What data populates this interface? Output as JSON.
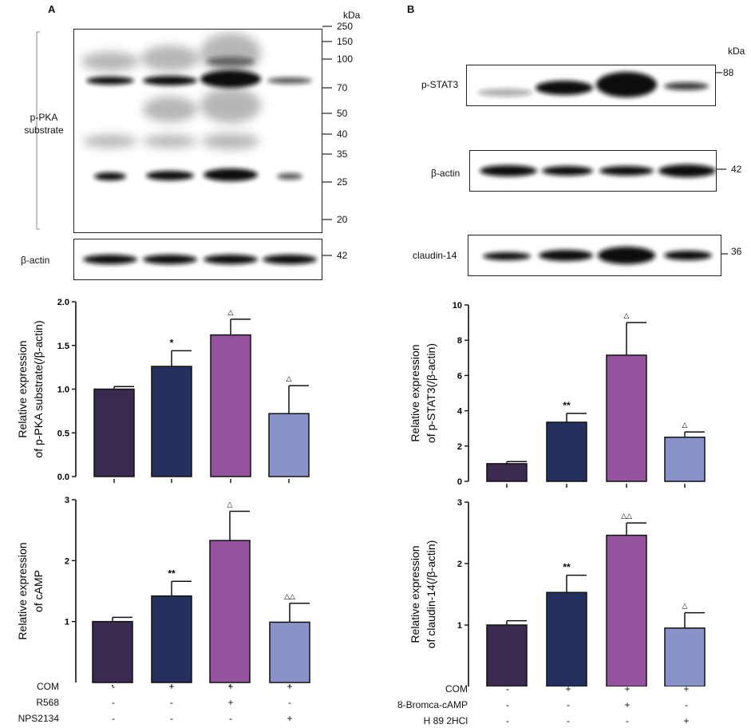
{
  "panels": {
    "a": "A",
    "b": "B"
  },
  "colors": {
    "bar1": "#3a2a4f",
    "bar2": "#24305e",
    "bar3": "#94539c",
    "bar4": "#8a93c9",
    "band": "#141414",
    "bracket": "#888888"
  },
  "blot_a": {
    "main_label": "p-PKA substrate",
    "actin_label": "β-actin",
    "kda_title": "kDa",
    "markers": [
      "250",
      "150",
      "100",
      "70",
      "50",
      "40",
      "35",
      "25",
      "20"
    ],
    "actin_marker": "42"
  },
  "blot_b": {
    "kda_title": "kDa",
    "rows": [
      {
        "label": "p-STAT3",
        "marker": "88"
      },
      {
        "label": "β-actin",
        "marker": "42"
      },
      {
        "label": "claudin-14",
        "marker": "36"
      }
    ]
  },
  "chart_data": [
    {
      "type": "bar",
      "id": "a_top",
      "ylabel": [
        "Relative expression",
        "of p-PKA substrate(/β-actin)"
      ],
      "ylim": [
        0,
        2.0
      ],
      "yticks": [
        0.0,
        0.5,
        1.0,
        1.5,
        2.0
      ],
      "ytick_decimals": 1,
      "values": [
        1.0,
        1.26,
        1.62,
        0.72
      ],
      "errors": [
        0.03,
        0.18,
        0.18,
        0.32
      ],
      "annotations": [
        "",
        "*",
        "△",
        "△"
      ]
    },
    {
      "type": "bar",
      "id": "a_bottom",
      "ylabel": [
        "Relative expression",
        "of cAMP"
      ],
      "ylim": [
        0,
        3
      ],
      "yticks": [
        1,
        2,
        3
      ],
      "ytick_decimals": 0,
      "values": [
        1.0,
        1.42,
        2.33,
        0.99
      ],
      "errors": [
        0.07,
        0.24,
        0.48,
        0.31
      ],
      "annotations": [
        "",
        "**",
        "△",
        "△△"
      ]
    },
    {
      "type": "bar",
      "id": "b_top",
      "ylabel": [
        "Relative expression",
        "of p-STAT3(/β-actin)"
      ],
      "ylim": [
        0,
        10
      ],
      "yticks": [
        0,
        2,
        4,
        6,
        8,
        10
      ],
      "ytick_decimals": 0,
      "values": [
        1.0,
        3.35,
        7.15,
        2.5
      ],
      "errors": [
        0.12,
        0.5,
        1.85,
        0.3
      ],
      "annotations": [
        "",
        "**",
        "△",
        "△"
      ]
    },
    {
      "type": "bar",
      "id": "b_bottom",
      "ylabel": [
        "Relative expression",
        "of claudin-14(/β-actin)"
      ],
      "ylim": [
        0,
        3
      ],
      "yticks": [
        1,
        2,
        3
      ],
      "ytick_decimals": 0,
      "values": [
        1.0,
        1.53,
        2.46,
        0.95
      ],
      "errors": [
        0.07,
        0.28,
        0.2,
        0.25
      ],
      "annotations": [
        "",
        "**",
        "△△",
        "△"
      ]
    }
  ],
  "treatments_a": [
    {
      "label": "COM",
      "signs": [
        "-",
        "+",
        "+",
        "+"
      ]
    },
    {
      "label": "R568",
      "signs": [
        "-",
        "-",
        "+",
        "-"
      ]
    },
    {
      "label": "NPS2134",
      "signs": [
        "-",
        "-",
        "-",
        "+"
      ]
    }
  ],
  "treatments_b": [
    {
      "label": "COM",
      "signs": [
        "-",
        "+",
        "+",
        "+"
      ]
    },
    {
      "label": "8-Bromca-cAMP",
      "signs": [
        "-",
        "-",
        "+",
        "-"
      ]
    },
    {
      "label": "H 89 2HCl",
      "signs": [
        "-",
        "-",
        "-",
        "+"
      ]
    }
  ]
}
